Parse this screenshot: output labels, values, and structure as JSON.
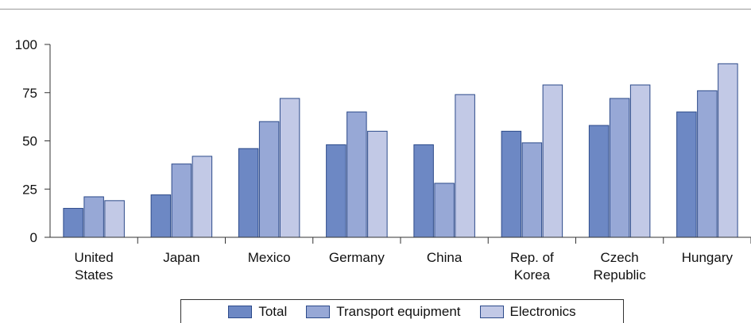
{
  "chart_data": {
    "type": "bar",
    "categories": [
      [
        "United",
        "States"
      ],
      [
        "Japan"
      ],
      [
        "Mexico"
      ],
      [
        "Germany"
      ],
      [
        "China"
      ],
      [
        "Rep. of",
        "Korea"
      ],
      [
        "Czech",
        "Republic"
      ],
      [
        "Hungary"
      ]
    ],
    "series": [
      {
        "name": "Total",
        "color": "#6d88c4",
        "values": [
          15,
          22,
          46,
          48,
          48,
          55,
          58,
          65
        ]
      },
      {
        "name": "Transport equipment",
        "color": "#97a8d6",
        "values": [
          21,
          38,
          60,
          65,
          28,
          49,
          72,
          76
        ]
      },
      {
        "name": "Electronics",
        "color": "#c2c9e6",
        "values": [
          19,
          42,
          72,
          55,
          74,
          79,
          79,
          90
        ]
      }
    ],
    "yticks": [
      0,
      25,
      50,
      75,
      100
    ],
    "ylim": [
      0,
      100
    ],
    "legend_position": "bottom",
    "grid": false
  }
}
